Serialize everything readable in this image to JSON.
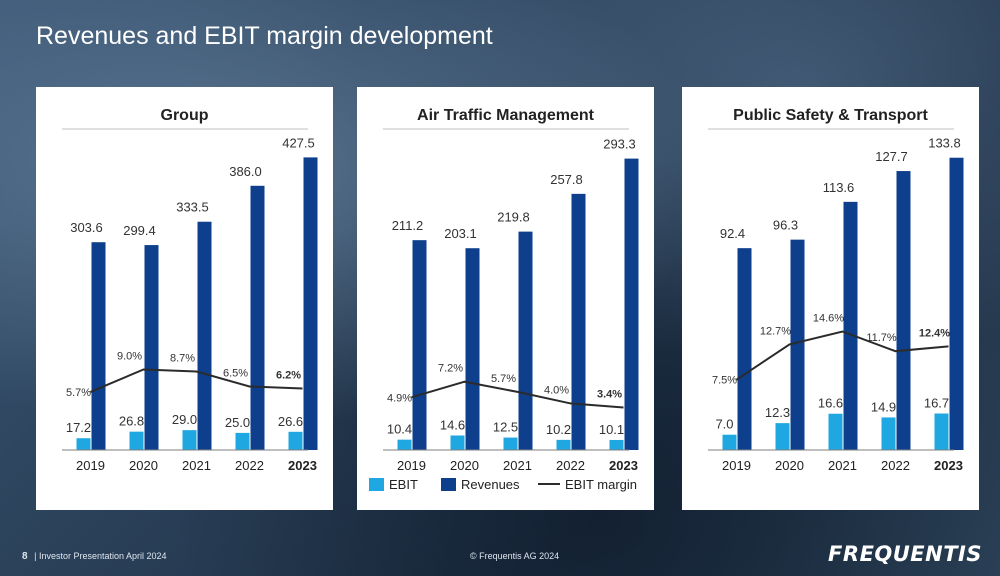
{
  "slide": {
    "title": "Revenues and EBIT margin development",
    "footer_page": "8",
    "footer_sep": "|",
    "footer_text": "Investor Presentation April 2024",
    "copyright": "© Frequentis AG 2024",
    "logo": "FREQUENTIS"
  },
  "colors": {
    "ebit": "#1ea7e1",
    "revenues": "#0d3f8c",
    "margin_line": "#2b2b2b"
  },
  "legend": {
    "ebit": "EBIT",
    "revenues": "Revenues",
    "margin": "EBIT margin"
  },
  "chart_data": [
    {
      "type": "bar",
      "title": "Group",
      "categories": [
        "2019",
        "2020",
        "2021",
        "2022",
        "2023"
      ],
      "bold_category": "2023",
      "ylim": [
        0,
        450
      ],
      "series": [
        {
          "name": "EBIT",
          "values": [
            17.2,
            26.8,
            29.0,
            25.0,
            26.6
          ],
          "labels": [
            "17.2",
            "26.8",
            "29.0",
            "25.0",
            "26.6"
          ]
        },
        {
          "name": "Revenues",
          "values": [
            303.6,
            299.4,
            333.5,
            386.0,
            427.5
          ],
          "labels": [
            "303.6",
            "299.4",
            "333.5",
            "386.0",
            "427.5"
          ]
        },
        {
          "name": "EBIT margin",
          "values": [
            5.7,
            9.0,
            8.7,
            6.5,
            6.2
          ],
          "labels": [
            "5.7%",
            "9.0%",
            "8.7%",
            "6.5%",
            "6.2%"
          ]
        }
      ]
    },
    {
      "type": "bar",
      "title": "Air Traffic Management",
      "categories": [
        "2019",
        "2020",
        "2021",
        "2022",
        "2023"
      ],
      "bold_category": "2023",
      "ylim": [
        0,
        310
      ],
      "series": [
        {
          "name": "EBIT",
          "values": [
            10.4,
            14.6,
            12.5,
            10.2,
            10.1
          ],
          "labels": [
            "10.4",
            "14.6",
            "12.5",
            "10.2",
            "10.1"
          ]
        },
        {
          "name": "Revenues",
          "values": [
            211.2,
            203.1,
            219.8,
            257.8,
            293.3
          ],
          "labels": [
            "211.2",
            "203.1",
            "219.8",
            "257.8",
            "293.3"
          ]
        },
        {
          "name": "EBIT margin",
          "values": [
            4.9,
            7.2,
            5.7,
            4.0,
            3.4
          ],
          "labels": [
            "4.9%",
            "7.2%",
            "5.7%",
            "4.0%",
            "3.4%"
          ]
        }
      ]
    },
    {
      "type": "bar",
      "title": "Public Safety & Transport",
      "categories": [
        "2019",
        "2020",
        "2021",
        "2022",
        "2023"
      ],
      "bold_category": "2023",
      "ylim": [
        0,
        141
      ],
      "series": [
        {
          "name": "EBIT",
          "values": [
            7.0,
            12.3,
            16.6,
            14.9,
            16.7
          ],
          "labels": [
            "7.0",
            "12.3",
            "16.6",
            "14.9",
            "16.7"
          ]
        },
        {
          "name": "Revenues",
          "values": [
            92.4,
            96.3,
            113.6,
            127.7,
            133.8
          ],
          "labels": [
            "92.4",
            "96.3",
            "113.6",
            "127.7",
            "133.8"
          ]
        },
        {
          "name": "EBIT margin",
          "values": [
            7.5,
            12.7,
            14.6,
            11.7,
            12.4
          ],
          "labels": [
            "7.5%",
            "12.7%",
            "14.6%",
            "11.7%",
            "12.4%"
          ]
        }
      ]
    }
  ]
}
